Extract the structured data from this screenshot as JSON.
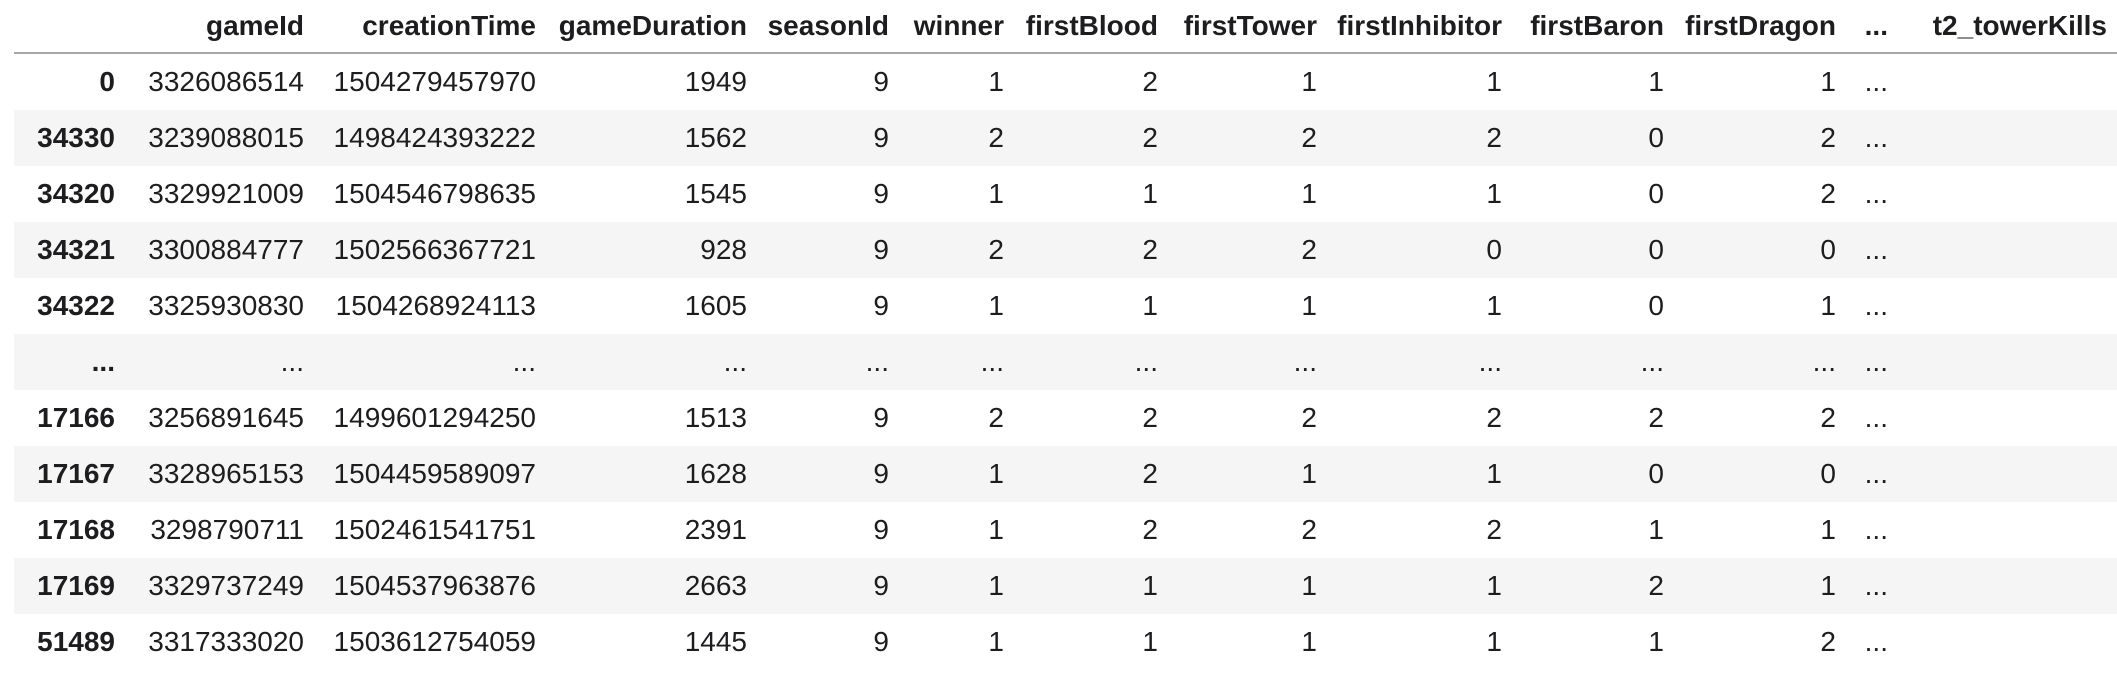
{
  "table": {
    "index_header": "",
    "columns": [
      "gameId",
      "creationTime",
      "gameDuration",
      "seasonId",
      "winner",
      "firstBlood",
      "firstTower",
      "firstInhibitor",
      "firstBaron",
      "firstDragon",
      "...",
      "t2_towerKills"
    ],
    "rows": [
      {
        "index": "0",
        "cells": [
          "3326086514",
          "1504279457970",
          "1949",
          "9",
          "1",
          "2",
          "1",
          "1",
          "1",
          "1",
          "...",
          ""
        ]
      },
      {
        "index": "34330",
        "cells": [
          "3239088015",
          "1498424393222",
          "1562",
          "9",
          "2",
          "2",
          "2",
          "2",
          "0",
          "2",
          "...",
          ""
        ]
      },
      {
        "index": "34320",
        "cells": [
          "3329921009",
          "1504546798635",
          "1545",
          "9",
          "1",
          "1",
          "1",
          "1",
          "0",
          "2",
          "...",
          ""
        ]
      },
      {
        "index": "34321",
        "cells": [
          "3300884777",
          "1502566367721",
          "928",
          "9",
          "2",
          "2",
          "2",
          "0",
          "0",
          "0",
          "...",
          ""
        ]
      },
      {
        "index": "34322",
        "cells": [
          "3325930830",
          "1504268924113",
          "1605",
          "9",
          "1",
          "1",
          "1",
          "1",
          "0",
          "1",
          "...",
          ""
        ]
      },
      {
        "index": "...",
        "cells": [
          "...",
          "...",
          "...",
          "...",
          "...",
          "...",
          "...",
          "...",
          "...",
          "...",
          "...",
          ""
        ]
      },
      {
        "index": "17166",
        "cells": [
          "3256891645",
          "1499601294250",
          "1513",
          "9",
          "2",
          "2",
          "2",
          "2",
          "2",
          "2",
          "...",
          ""
        ]
      },
      {
        "index": "17167",
        "cells": [
          "3328965153",
          "1504459589097",
          "1628",
          "9",
          "1",
          "2",
          "1",
          "1",
          "0",
          "0",
          "...",
          ""
        ]
      },
      {
        "index": "17168",
        "cells": [
          "3298790711",
          "1502461541751",
          "2391",
          "9",
          "1",
          "2",
          "2",
          "2",
          "1",
          "1",
          "...",
          ""
        ]
      },
      {
        "index": "17169",
        "cells": [
          "3329737249",
          "1504537963876",
          "2663",
          "9",
          "1",
          "1",
          "1",
          "1",
          "2",
          "1",
          "...",
          ""
        ]
      },
      {
        "index": "51489",
        "cells": [
          "3317333020",
          "1503612754059",
          "1445",
          "9",
          "1",
          "1",
          "1",
          "1",
          "1",
          "2",
          "...",
          ""
        ]
      }
    ]
  },
  "colors": {
    "background": "#ffffff",
    "row_stripe": "#f5f5f5",
    "header_border": "#a6a6a6",
    "text": "#1d1d1f"
  }
}
